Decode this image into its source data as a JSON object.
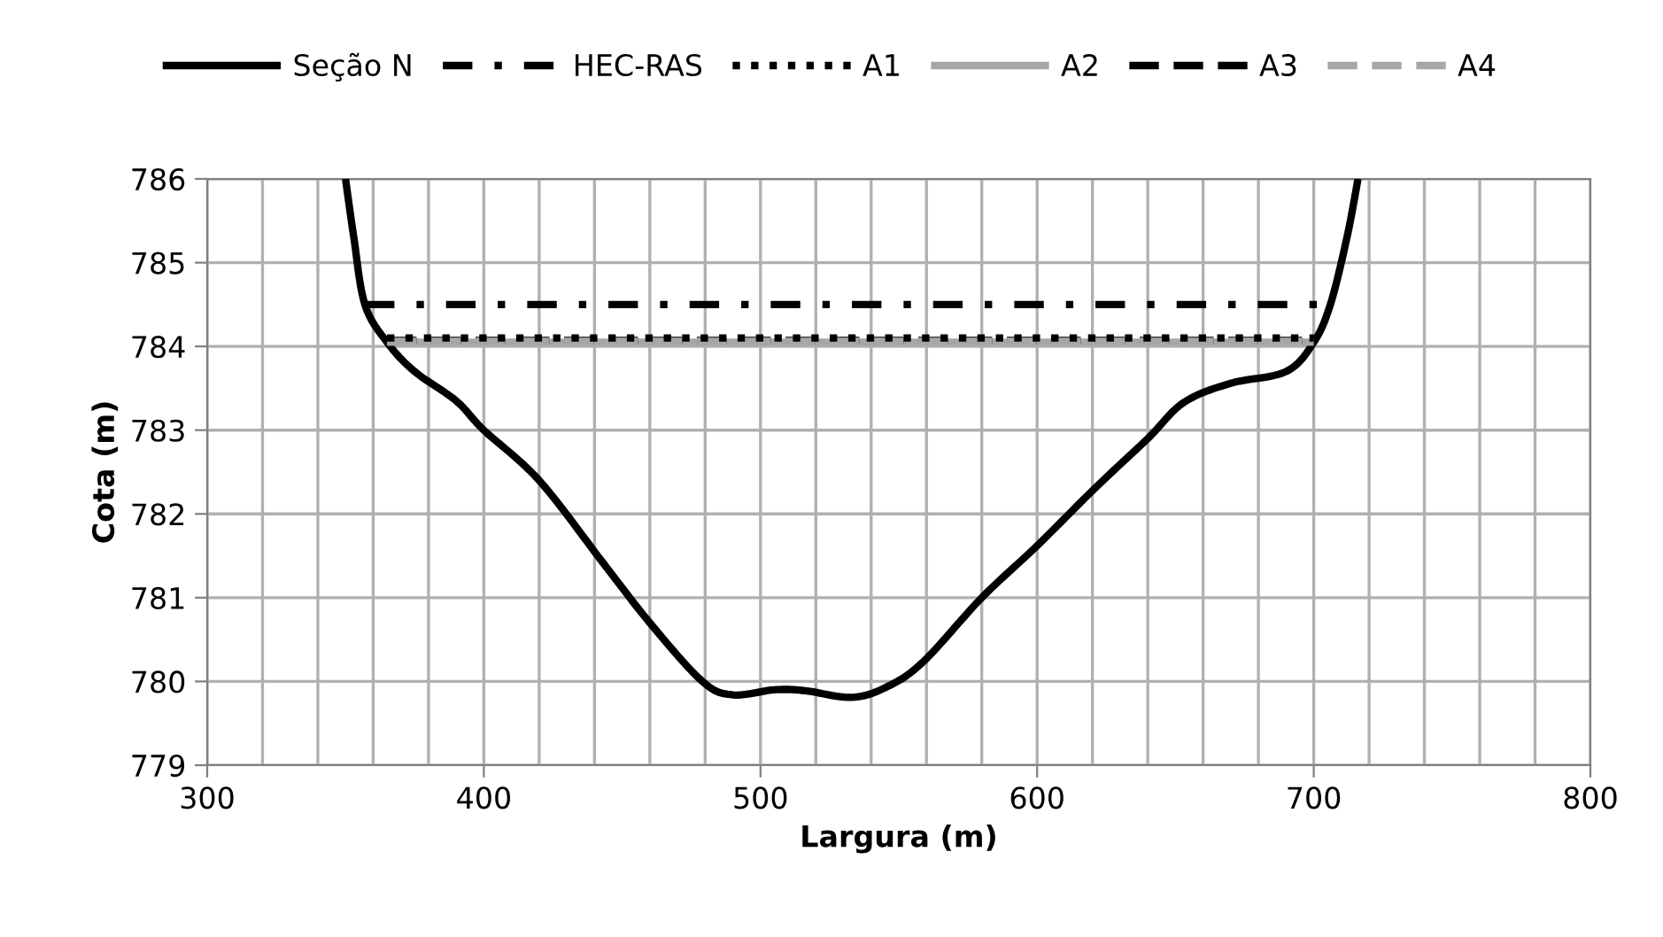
{
  "chart_data": {
    "type": "line",
    "xlabel": "Largura (m)",
    "ylabel": "Cota (m)",
    "xlim": [
      300,
      800
    ],
    "ylim": [
      779,
      786
    ],
    "xticks": [
      300,
      {
        "value": 320,
        "label": null
      },
      {
        "value": 340,
        "label": null
      },
      {
        "value": 360,
        "label": null
      },
      {
        "value": 380,
        "label": null
      },
      400,
      {
        "value": 420,
        "label": null
      },
      {
        "value": 440,
        "label": null
      },
      {
        "value": 460,
        "label": null
      },
      {
        "value": 480,
        "label": null
      },
      500,
      {
        "value": 520,
        "label": null
      },
      {
        "value": 540,
        "label": null
      },
      {
        "value": 560,
        "label": null
      },
      {
        "value": 580,
        "label": null
      },
      600,
      {
        "value": 620,
        "label": null
      },
      {
        "value": 640,
        "label": null
      },
      {
        "value": 660,
        "label": null
      },
      {
        "value": 680,
        "label": null
      },
      700,
      {
        "value": 720,
        "label": null
      },
      {
        "value": 740,
        "label": null
      },
      {
        "value": 760,
        "label": null
      },
      {
        "value": 780,
        "label": null
      },
      800
    ],
    "yticks": [
      779,
      780,
      781,
      782,
      783,
      784,
      785,
      786
    ],
    "grid": true,
    "legend": "top",
    "series": [
      {
        "name": "Seção N",
        "color": "#000000",
        "line_style": "solid",
        "x": [
          350,
          353,
          357,
          365,
          375,
          390,
          400,
          420,
          443,
          460,
          479,
          490,
          505,
          516,
          533,
          546,
          559,
          580,
          600,
          621,
          640,
          653,
          670,
          690,
          700,
          706,
          712,
          716
        ],
        "values": [
          786,
          785.3,
          784.5,
          784.05,
          783.7,
          783.35,
          783.0,
          782.4,
          781.42,
          780.7,
          780.0,
          779.84,
          779.9,
          779.89,
          779.81,
          779.94,
          780.24,
          781.0,
          781.62,
          782.31,
          782.9,
          783.33,
          783.56,
          783.7,
          784.05,
          784.5,
          785.3,
          786
        ]
      },
      {
        "name": "HEC-RAS",
        "color": "#000000",
        "line_style": "dashdot",
        "x": [
          357,
          706
        ],
        "values": [
          784.5,
          784.5
        ]
      },
      {
        "name": "A1",
        "color": "#000000",
        "line_style": "dotted",
        "x": [
          365,
          700
        ],
        "values": [
          784.1,
          784.1
        ]
      },
      {
        "name": "A2",
        "color": "#a6a6a6",
        "line_style": "solid",
        "x": [
          365,
          700
        ],
        "values": [
          784.05,
          784.05
        ]
      },
      {
        "name": "A3",
        "color": "#000000",
        "line_style": "dashed",
        "x": [
          365,
          700
        ],
        "values": [
          784.07,
          784.07
        ]
      },
      {
        "name": "A4",
        "color": "#a6a6a6",
        "line_style": "dashed",
        "x": [
          365,
          700
        ],
        "values": [
          784.06,
          784.06
        ]
      }
    ]
  }
}
